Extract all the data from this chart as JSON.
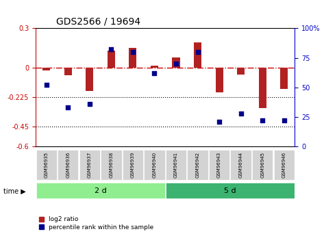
{
  "title": "GDS2566 / 19694",
  "samples": [
    "GSM96935",
    "GSM96936",
    "GSM96937",
    "GSM96938",
    "GSM96939",
    "GSM96940",
    "GSM96941",
    "GSM96942",
    "GSM96943",
    "GSM96944",
    "GSM96945",
    "GSM96946"
  ],
  "log2_ratio": [
    -0.02,
    -0.06,
    -0.18,
    0.13,
    0.15,
    0.015,
    0.08,
    0.19,
    -0.19,
    -0.055,
    -0.31,
    -0.16
  ],
  "percentile_rank": [
    52,
    33,
    36,
    82,
    80,
    62,
    70,
    80,
    21,
    28,
    22,
    22
  ],
  "group1_label": "2 d",
  "group2_label": "5 d",
  "group1_count": 6,
  "group2_count": 6,
  "ylim_left": [
    -0.6,
    0.3
  ],
  "ylim_right": [
    0,
    100
  ],
  "yticks_left": [
    -0.6,
    -0.45,
    -0.225,
    0.0,
    0.3
  ],
  "yticks_right": [
    0,
    25,
    50,
    75,
    100
  ],
  "hline_y": 0.0,
  "dotted_lines": [
    -0.225,
    -0.45
  ],
  "bar_color": "#b22222",
  "dot_color": "#00008b",
  "group_color1": "#90ee90",
  "group_color2": "#3cb371",
  "label_log2": "log2 ratio",
  "label_pct": "percentile rank within the sample",
  "time_label": "time"
}
